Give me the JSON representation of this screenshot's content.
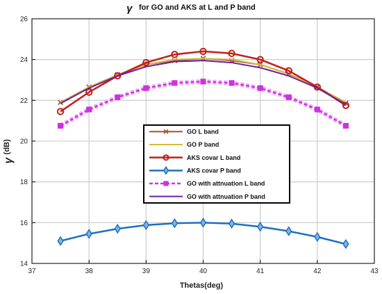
{
  "chart_data": {
    "type": "line",
    "title_symbol": "γ",
    "title": "for GO and AKS at L and P band",
    "xlabel": "Thetas(deg)",
    "ylabel_symbol": "γ",
    "ylabel_unit": "(dB)",
    "xlim": [
      37,
      43
    ],
    "ylim": [
      14,
      26
    ],
    "xticks": [
      "37",
      "38",
      "39",
      "40",
      "41",
      "42",
      "43"
    ],
    "yticks": [
      "14",
      "16",
      "18",
      "20",
      "22",
      "24",
      "26"
    ],
    "grid": true,
    "legend_position": "center",
    "x": [
      37.5,
      38,
      38.5,
      39,
      39.5,
      40,
      40.5,
      41,
      41.5,
      42,
      42.5
    ],
    "series": [
      {
        "name": "GO L band",
        "color": "#a0522d",
        "marker": "x",
        "dash": "solid",
        "width": 2,
        "values": [
          21.9,
          22.65,
          23.25,
          23.75,
          23.95,
          24.05,
          23.95,
          23.75,
          23.3,
          22.65,
          21.85
        ]
      },
      {
        "name": "GO P band",
        "color": "#d4b93a",
        "marker": "none",
        "dash": "solid",
        "width": 2,
        "values": [
          21.9,
          22.65,
          23.25,
          23.75,
          24.0,
          24.05,
          24.0,
          23.75,
          23.3,
          22.65,
          21.9
        ]
      },
      {
        "name": "AKS covar L band",
        "color": "#c0201a",
        "marker": "circle",
        "dash": "solid",
        "width": 2.5,
        "values": [
          21.45,
          22.4,
          23.2,
          23.85,
          24.25,
          24.4,
          24.3,
          24.0,
          23.45,
          22.65,
          21.75
        ]
      },
      {
        "name": "AKS covar P band",
        "color": "#1f6fbf",
        "marker": "diamond",
        "dash": "solid",
        "width": 2.5,
        "values": [
          15.1,
          15.45,
          15.7,
          15.88,
          15.97,
          16.0,
          15.95,
          15.8,
          15.58,
          15.3,
          14.95
        ]
      },
      {
        "name": "GO with attnuation L band",
        "color": "#cc33dd",
        "marker": "square",
        "dash": "dashed",
        "width": 2.5,
        "values": [
          20.75,
          21.55,
          22.15,
          22.6,
          22.85,
          22.92,
          22.85,
          22.6,
          22.15,
          21.55,
          20.75
        ]
      },
      {
        "name": "GO with attnuation P band",
        "color": "#6a1ea0",
        "marker": "none",
        "dash": "solid",
        "width": 2,
        "values": [
          21.85,
          22.6,
          23.2,
          23.65,
          23.9,
          23.95,
          23.85,
          23.6,
          23.2,
          22.6,
          21.8
        ]
      }
    ]
  }
}
